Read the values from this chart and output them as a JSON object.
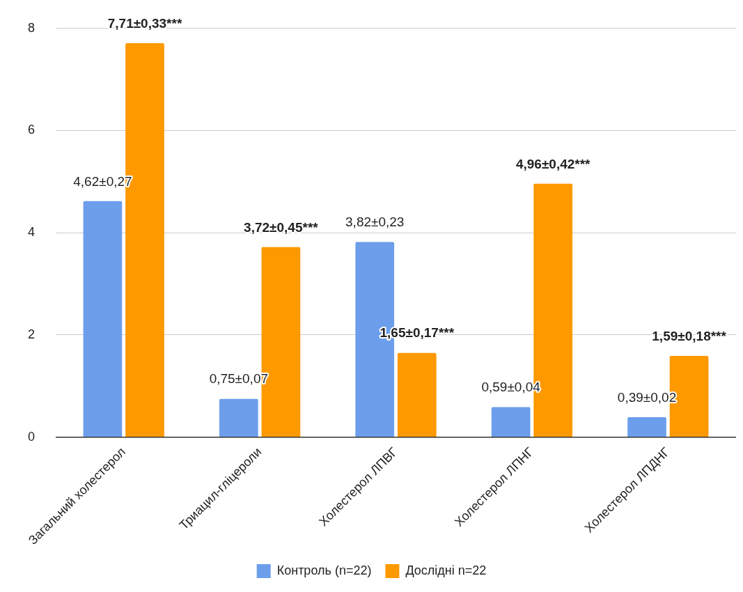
{
  "chart_data": {
    "type": "bar",
    "categories": [
      "Загальний холестерол",
      "Триацил-гліцероли",
      "Холестерол ЛПВГ",
      "Холестерол ЛПНГ",
      "Холестерол ЛПДНГ"
    ],
    "series": [
      {
        "name": "Контроль (n=22)",
        "color": "#6d9eeb",
        "values": [
          4.62,
          0.75,
          3.82,
          0.59,
          0.39
        ],
        "value_labels": [
          "4,62±0,27",
          "0,75±0,07",
          "3,82±0,23",
          "0,59±0,04",
          "0,39±0,02"
        ]
      },
      {
        "name": "Дослідні n=22",
        "color": "#ff9900",
        "values": [
          7.71,
          3.72,
          1.65,
          4.96,
          1.59
        ],
        "value_labels": [
          "7,71±0,33***",
          "3,72±0,45***",
          "1,65±0,17***",
          "4,96±0,42***",
          "1,59±0,18***"
        ]
      }
    ],
    "ylim": [
      0,
      8
    ],
    "yticks": [
      0,
      2,
      4,
      6,
      8
    ],
    "grid": "y",
    "legend": "bottom"
  }
}
